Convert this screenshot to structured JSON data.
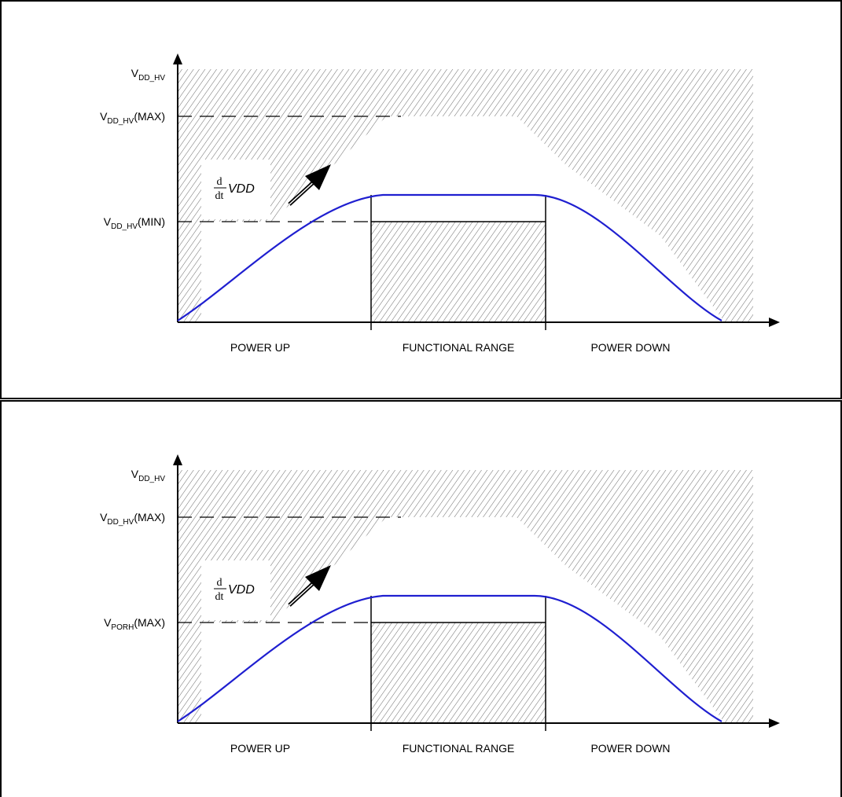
{
  "panels": [
    {
      "y_axis_label": "V",
      "y_axis_label_sub": "DD_HV",
      "max_label": "V",
      "max_label_sub": "DD_HV",
      "max_label_suffix": "(MAX)",
      "threshold_label": "V",
      "threshold_label_sub": "DD_HV",
      "threshold_label_suffix": "(MIN)",
      "derivative_num": "d",
      "derivative_den": "dt",
      "derivative_var": "VDD",
      "regions": [
        "POWER UP",
        "FUNCTIONAL RANGE",
        "POWER DOWN"
      ]
    },
    {
      "y_axis_label": "V",
      "y_axis_label_sub": "DD_HV",
      "max_label": "V",
      "max_label_sub": "DD_HV",
      "max_label_suffix": "(MAX)",
      "threshold_label": "V",
      "threshold_label_sub": "PORH",
      "threshold_label_suffix": "(MAX)",
      "derivative_num": "d",
      "derivative_den": "dt",
      "derivative_var": "VDD",
      "regions": [
        "POWER UP",
        "FUNCTIONAL RANGE",
        "POWER DOWN"
      ]
    }
  ],
  "colors": {
    "curve": "#1f1fd0",
    "hatch": "#555555",
    "border": "#000000"
  }
}
